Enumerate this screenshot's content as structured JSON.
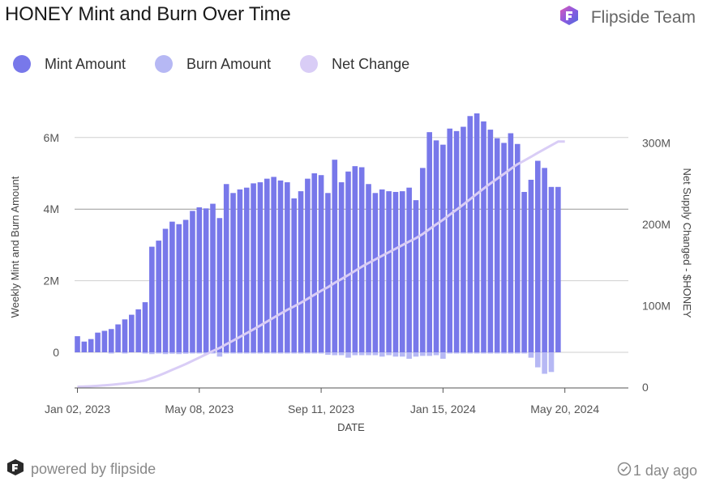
{
  "header": {
    "title": "HONEY Mint and Burn Over Time",
    "brand": "Flipside Team",
    "brand_icon": "flipside-logo-icon"
  },
  "legend": [
    {
      "label": "Mint Amount",
      "color": "#7878ea"
    },
    {
      "label": "Burn Amount",
      "color": "#b6b8f4"
    },
    {
      "label": "Net Change",
      "color": "#d9cdf6"
    }
  ],
  "footer": {
    "powered_by": "powered by flipside",
    "updated": "1 day ago"
  },
  "chart_data": {
    "type": "bar",
    "xlabel": "DATE",
    "ylabel": "Weekly Mint and Burn Amount",
    "y2label": "Net Supply Changed - $HONEY",
    "x_ticks": [
      "Jan 02, 2023",
      "May 08, 2023",
      "Sep 11, 2023",
      "Jan 15, 2024",
      "May 20, 2024"
    ],
    "y_ticks": [
      "0",
      "2M",
      "4M",
      "6M"
    ],
    "y2_ticks": [
      "0",
      "100M",
      "200M",
      "300M"
    ],
    "ylim": [
      -1050000,
      7000000
    ],
    "y2lim": [
      0,
      310000000
    ],
    "grid": true,
    "legend_position": "top-left",
    "x": [
      "2023-01-02",
      "2023-01-09",
      "2023-01-16",
      "2023-01-23",
      "2023-01-30",
      "2023-02-06",
      "2023-02-13",
      "2023-02-20",
      "2023-02-27",
      "2023-03-06",
      "2023-03-13",
      "2023-03-20",
      "2023-03-27",
      "2023-04-03",
      "2023-04-10",
      "2023-04-17",
      "2023-04-24",
      "2023-05-01",
      "2023-05-08",
      "2023-05-15",
      "2023-05-22",
      "2023-05-29",
      "2023-06-05",
      "2023-06-12",
      "2023-06-19",
      "2023-06-26",
      "2023-07-03",
      "2023-07-10",
      "2023-07-17",
      "2023-07-24",
      "2023-07-31",
      "2023-08-07",
      "2023-08-14",
      "2023-08-21",
      "2023-08-28",
      "2023-09-04",
      "2023-09-11",
      "2023-09-18",
      "2023-09-25",
      "2023-10-02",
      "2023-10-09",
      "2023-10-16",
      "2023-10-23",
      "2023-10-30",
      "2023-11-06",
      "2023-11-13",
      "2023-11-20",
      "2023-11-27",
      "2023-12-04",
      "2023-12-11",
      "2023-12-18",
      "2023-12-25",
      "2024-01-01",
      "2024-01-08",
      "2024-01-15",
      "2024-01-22",
      "2024-01-29",
      "2024-02-05",
      "2024-02-12",
      "2024-02-19",
      "2024-02-26",
      "2024-03-04",
      "2024-03-11",
      "2024-03-18",
      "2024-03-25",
      "2024-04-01",
      "2024-04-08",
      "2024-04-15",
      "2024-04-22",
      "2024-04-29",
      "2024-05-06",
      "2024-05-13",
      "2024-05-20"
    ],
    "series": [
      {
        "name": "Mint Amount",
        "color": "#7878ea",
        "values": [
          0.45,
          0.3,
          0.37,
          0.55,
          0.6,
          0.65,
          0.78,
          0.92,
          1.05,
          1.2,
          1.4,
          2.95,
          3.12,
          3.45,
          3.65,
          3.58,
          3.7,
          3.95,
          4.05,
          4.02,
          4.15,
          3.75,
          4.7,
          4.45,
          4.55,
          4.6,
          4.72,
          4.75,
          4.85,
          4.9,
          4.8,
          4.75,
          4.3,
          4.5,
          4.85,
          5.0,
          4.95,
          4.45,
          5.38,
          4.75,
          5.05,
          5.2,
          5.17,
          4.7,
          4.45,
          4.55,
          4.5,
          4.48,
          4.5,
          4.6,
          4.25,
          5.15,
          6.15,
          5.92,
          5.8,
          6.25,
          6.18,
          6.3,
          6.6,
          6.7,
          6.45,
          6.22,
          5.98,
          5.85,
          6.12,
          5.82,
          4.48,
          4.82,
          5.35,
          5.15,
          4.62,
          4.62,
          0
        ]
      },
      {
        "name": "Burn Amount",
        "color": "#b6b8f4",
        "values": [
          0,
          0,
          0,
          0,
          0,
          -0.02,
          0,
          -0.02,
          0,
          0,
          -0.02,
          -0.05,
          -0.03,
          -0.05,
          -0.04,
          -0.05,
          -0.04,
          -0.03,
          -0.03,
          -0.03,
          -0.03,
          -0.12,
          -0.02,
          -0.02,
          -0.02,
          -0.02,
          -0.02,
          -0.02,
          -0.02,
          -0.02,
          -0.02,
          -0.02,
          -0.02,
          -0.02,
          -0.02,
          -0.02,
          -0.02,
          -0.07,
          -0.08,
          -0.08,
          -0.15,
          -0.08,
          -0.08,
          -0.08,
          -0.08,
          -0.12,
          -0.08,
          -0.12,
          -0.12,
          -0.18,
          -0.12,
          -0.1,
          -0.1,
          -0.08,
          -0.18,
          -0.02,
          -0.02,
          -0.02,
          -0.02,
          -0.02,
          -0.02,
          -0.02,
          -0.02,
          -0.02,
          -0.02,
          -0.02,
          -0.02,
          -0.15,
          -0.42,
          -0.6,
          -0.55,
          0,
          0
        ]
      },
      {
        "name": "Net Change",
        "color": "#d9cdf6",
        "axis": "right",
        "values": [
          0.45,
          0.75,
          1.12,
          1.67,
          2.27,
          2.9,
          3.68,
          4.58,
          5.63,
          6.83,
          8.21,
          11.11,
          14.2,
          17.6,
          21.21,
          24.74,
          28.4,
          32.32,
          36.34,
          40.33,
          44.45,
          48.08,
          52.76,
          57.19,
          61.72,
          66.3,
          71,
          75.73,
          80.56,
          85.44,
          90.22,
          94.95,
          99.23,
          103.71,
          108.54,
          113.52,
          118.45,
          122.83,
          128.13,
          132.8,
          137.7,
          142.82,
          147.91,
          152.53,
          156.9,
          161.33,
          165.75,
          170.11,
          174.49,
          178.91,
          183.04,
          188.09,
          194.14,
          199.98,
          205.6,
          211.83,
          217.99,
          224.27,
          230.85,
          237.53,
          243.96,
          250.16,
          256.12,
          261.95,
          268.05,
          273.85,
          278.31,
          282.98,
          287.91,
          292.51,
          297.08,
          301.68,
          301.68
        ]
      }
    ],
    "value_units": "millions"
  }
}
